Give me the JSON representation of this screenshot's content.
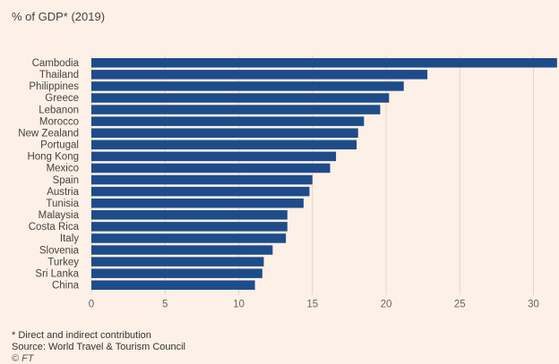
{
  "chart_data": {
    "type": "bar",
    "orientation": "horizontal",
    "title": "",
    "subtitle": "% of GDP* (2019)",
    "categories": [
      "Cambodia",
      "Thailand",
      "Philippines",
      "Greece",
      "Lebanon",
      "Morocco",
      "New Zealand",
      "Portugal",
      "Hong Kong",
      "Mexico",
      "Spain",
      "Austria",
      "Tunisia",
      "Malaysia",
      "Costa Rica",
      "Italy",
      "Slovenia",
      "Turkey",
      "Sri Lanka",
      "China"
    ],
    "values": [
      31.6,
      22.8,
      21.2,
      20.2,
      19.6,
      18.5,
      18.1,
      18.0,
      16.6,
      16.2,
      15.0,
      14.8,
      14.4,
      13.3,
      13.3,
      13.2,
      12.3,
      11.7,
      11.6,
      11.1
    ],
    "xticks": [
      "0",
      "5",
      "10",
      "15",
      "20",
      "25",
      "30"
    ],
    "xlim": [
      0,
      32
    ],
    "bar_color": "#1e4c8a",
    "grid": true
  },
  "footer": {
    "note": "* Direct and indirect contribution",
    "source": "Source: World Travel & Tourism Council",
    "credit": "© FT"
  }
}
